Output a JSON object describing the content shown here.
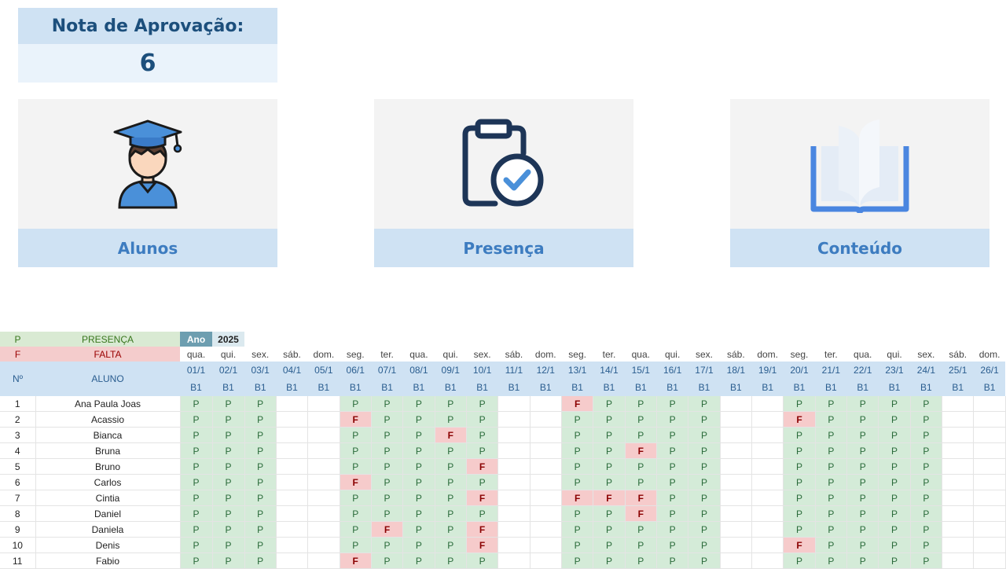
{
  "nota": {
    "title": "Nota de Aprovação:",
    "value": "6"
  },
  "cards": [
    {
      "id": "alunos",
      "label": "Alunos",
      "icon": "graduate-student-icon"
    },
    {
      "id": "presenca",
      "label": "Presença",
      "icon": "clipboard-check-icon"
    },
    {
      "id": "conteudo",
      "label": "Conteúdo",
      "icon": "open-book-icon"
    }
  ],
  "legend": {
    "p_code": "P",
    "p_label": "PRESENÇA",
    "f_code": "F",
    "f_label": "FALTA",
    "ano_label": "Ano",
    "ano_value": "2025"
  },
  "header": {
    "num": "Nº",
    "name": "ALUNO",
    "bimester": "B1"
  },
  "days": [
    {
      "w": "qua.",
      "d": "01/1"
    },
    {
      "w": "qui.",
      "d": "02/1"
    },
    {
      "w": "sex.",
      "d": "03/1"
    },
    {
      "w": "sáb.",
      "d": "04/1"
    },
    {
      "w": "dom.",
      "d": "05/1"
    },
    {
      "w": "seg.",
      "d": "06/1"
    },
    {
      "w": "ter.",
      "d": "07/1"
    },
    {
      "w": "qua.",
      "d": "08/1"
    },
    {
      "w": "qui.",
      "d": "09/1"
    },
    {
      "w": "sex.",
      "d": "10/1"
    },
    {
      "w": "sáb.",
      "d": "11/1"
    },
    {
      "w": "dom.",
      "d": "12/1"
    },
    {
      "w": "seg.",
      "d": "13/1"
    },
    {
      "w": "ter.",
      "d": "14/1"
    },
    {
      "w": "qua.",
      "d": "15/1"
    },
    {
      "w": "qui.",
      "d": "16/1"
    },
    {
      "w": "sex.",
      "d": "17/1"
    },
    {
      "w": "sáb.",
      "d": "18/1"
    },
    {
      "w": "dom.",
      "d": "19/1"
    },
    {
      "w": "seg.",
      "d": "20/1"
    },
    {
      "w": "ter.",
      "d": "21/1"
    },
    {
      "w": "qua.",
      "d": "22/1"
    },
    {
      "w": "qui.",
      "d": "23/1"
    },
    {
      "w": "sex.",
      "d": "24/1"
    },
    {
      "w": "sáb.",
      "d": "25/1"
    },
    {
      "w": "dom.",
      "d": "26/1"
    }
  ],
  "students": [
    {
      "n": "1",
      "name": "Ana Paula Joas",
      "marks": [
        "P",
        "P",
        "P",
        "",
        "",
        "P",
        "P",
        "P",
        "P",
        "P",
        "",
        "",
        "F",
        "P",
        "P",
        "P",
        "P",
        "",
        "",
        "P",
        "P",
        "P",
        "P",
        "P",
        "",
        ""
      ]
    },
    {
      "n": "2",
      "name": "Acassio",
      "marks": [
        "P",
        "P",
        "P",
        "",
        "",
        "F",
        "P",
        "P",
        "P",
        "P",
        "",
        "",
        "P",
        "P",
        "P",
        "P",
        "P",
        "",
        "",
        "F",
        "P",
        "P",
        "P",
        "P",
        "",
        ""
      ]
    },
    {
      "n": "3",
      "name": "Bianca",
      "marks": [
        "P",
        "P",
        "P",
        "",
        "",
        "P",
        "P",
        "P",
        "F",
        "P",
        "",
        "",
        "P",
        "P",
        "P",
        "P",
        "P",
        "",
        "",
        "P",
        "P",
        "P",
        "P",
        "P",
        "",
        ""
      ]
    },
    {
      "n": "4",
      "name": "Bruna",
      "marks": [
        "P",
        "P",
        "P",
        "",
        "",
        "P",
        "P",
        "P",
        "P",
        "P",
        "",
        "",
        "P",
        "P",
        "F",
        "P",
        "P",
        "",
        "",
        "P",
        "P",
        "P",
        "P",
        "P",
        "",
        ""
      ]
    },
    {
      "n": "5",
      "name": "Bruno",
      "marks": [
        "P",
        "P",
        "P",
        "",
        "",
        "P",
        "P",
        "P",
        "P",
        "F",
        "",
        "",
        "P",
        "P",
        "P",
        "P",
        "P",
        "",
        "",
        "P",
        "P",
        "P",
        "P",
        "P",
        "",
        ""
      ]
    },
    {
      "n": "6",
      "name": "Carlos",
      "marks": [
        "P",
        "P",
        "P",
        "",
        "",
        "F",
        "P",
        "P",
        "P",
        "P",
        "",
        "",
        "P",
        "P",
        "P",
        "P",
        "P",
        "",
        "",
        "P",
        "P",
        "P",
        "P",
        "P",
        "",
        ""
      ]
    },
    {
      "n": "7",
      "name": "Cintia",
      "marks": [
        "P",
        "P",
        "P",
        "",
        "",
        "P",
        "P",
        "P",
        "P",
        "F",
        "",
        "",
        "F",
        "F",
        "F",
        "P",
        "P",
        "",
        "",
        "P",
        "P",
        "P",
        "P",
        "P",
        "",
        ""
      ]
    },
    {
      "n": "8",
      "name": "Daniel",
      "marks": [
        "P",
        "P",
        "P",
        "",
        "",
        "P",
        "P",
        "P",
        "P",
        "P",
        "",
        "",
        "P",
        "P",
        "F",
        "P",
        "P",
        "",
        "",
        "P",
        "P",
        "P",
        "P",
        "P",
        "",
        ""
      ]
    },
    {
      "n": "9",
      "name": "Daniela",
      "marks": [
        "P",
        "P",
        "P",
        "",
        "",
        "P",
        "F",
        "P",
        "P",
        "F",
        "",
        "",
        "P",
        "P",
        "P",
        "P",
        "P",
        "",
        "",
        "P",
        "P",
        "P",
        "P",
        "P",
        "",
        ""
      ]
    },
    {
      "n": "10",
      "name": "Denis",
      "marks": [
        "P",
        "P",
        "P",
        "",
        "",
        "P",
        "P",
        "P",
        "P",
        "F",
        "",
        "",
        "P",
        "P",
        "P",
        "P",
        "P",
        "",
        "",
        "F",
        "P",
        "P",
        "P",
        "P",
        "",
        ""
      ]
    },
    {
      "n": "11",
      "name": "Fabio",
      "marks": [
        "P",
        "P",
        "P",
        "",
        "",
        "F",
        "P",
        "P",
        "P",
        "P",
        "",
        "",
        "P",
        "P",
        "P",
        "P",
        "P",
        "",
        "",
        "P",
        "P",
        "P",
        "P",
        "P",
        "",
        ""
      ]
    }
  ]
}
